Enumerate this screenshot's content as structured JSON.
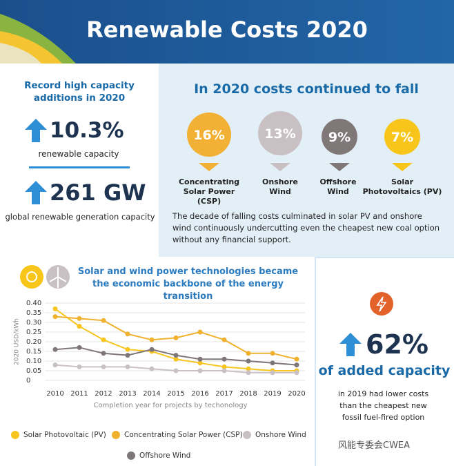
{
  "header": {
    "title": "Renewable Costs 2020"
  },
  "left_panel": {
    "title": "Record high capacity additions in 2020",
    "stats": [
      {
        "value": "10.3%",
        "label": "renewable capacity"
      },
      {
        "value": "261 GW",
        "label": "global renewable generation capacity"
      }
    ]
  },
  "right_panel": {
    "title": "In 2020 costs continued to fall",
    "items": [
      {
        "percent": "16%",
        "label": "Concentrating Solar Power (CSP)"
      },
      {
        "percent": "13%",
        "label": "Onshore Wind"
      },
      {
        "percent": "9%",
        "label": "Offshore Wind"
      },
      {
        "percent": "7%",
        "label": "Solar Photovoltaics (PV)"
      }
    ],
    "text": "The decade of falling costs culminated in solar PV and onshore wind continuously undercutting even the cheapest new coal option without any financial support."
  },
  "side_panel": {
    "value": "62%",
    "headline": "of added capacity",
    "text": "in 2019 had lower costs than the cheapest new fossil fuel-fired option"
  },
  "watermark": "风能专委会CWEA",
  "chart_data": {
    "type": "line",
    "title": "Solar and wind power technologies became the economic backbone of the energy transition",
    "y_label": "2020 USD/kWh",
    "x_label": "Completion year for projects by techonology",
    "categories": [
      "2010",
      "2011",
      "2012",
      "2013",
      "2014",
      "2015",
      "2016",
      "2017",
      "2018",
      "2019",
      "2020"
    ],
    "ylim": [
      0,
      0.4
    ],
    "yticks": [
      0,
      0.05,
      {
        "value": 0.1,
        "label": "0.10"
      },
      0.15,
      {
        "value": 0.2,
        "label": "0.20"
      },
      0.25,
      {
        "value": 0.3,
        "label": "0.30"
      },
      0.35,
      {
        "value": 0.4,
        "label": "0.40"
      }
    ],
    "grid": true,
    "series": [
      {
        "name": "Solar Photovoltaic (PV)",
        "color": "#f7c51e",
        "values": [
          0.37,
          0.28,
          0.21,
          0.16,
          0.15,
          0.11,
          0.09,
          0.07,
          0.06,
          0.05,
          0.05
        ]
      },
      {
        "name": "Concentrating Solar Power (CSP)",
        "color": "#f0b12f",
        "values": [
          0.33,
          0.32,
          0.31,
          0.24,
          0.21,
          0.22,
          0.25,
          0.21,
          0.14,
          0.14,
          0.11
        ]
      },
      {
        "name": "Onshore Wind",
        "color": "#c9c1c5",
        "values": [
          0.08,
          0.07,
          0.07,
          0.07,
          0.06,
          0.05,
          0.05,
          0.05,
          0.04,
          0.04,
          0.04
        ]
      },
      {
        "name": "Offshore Wind",
        "color": "#7e7679",
        "values": [
          0.16,
          0.17,
          0.14,
          0.13,
          0.16,
          0.13,
          0.11,
          0.11,
          0.1,
          0.09,
          0.08
        ]
      }
    ]
  }
}
